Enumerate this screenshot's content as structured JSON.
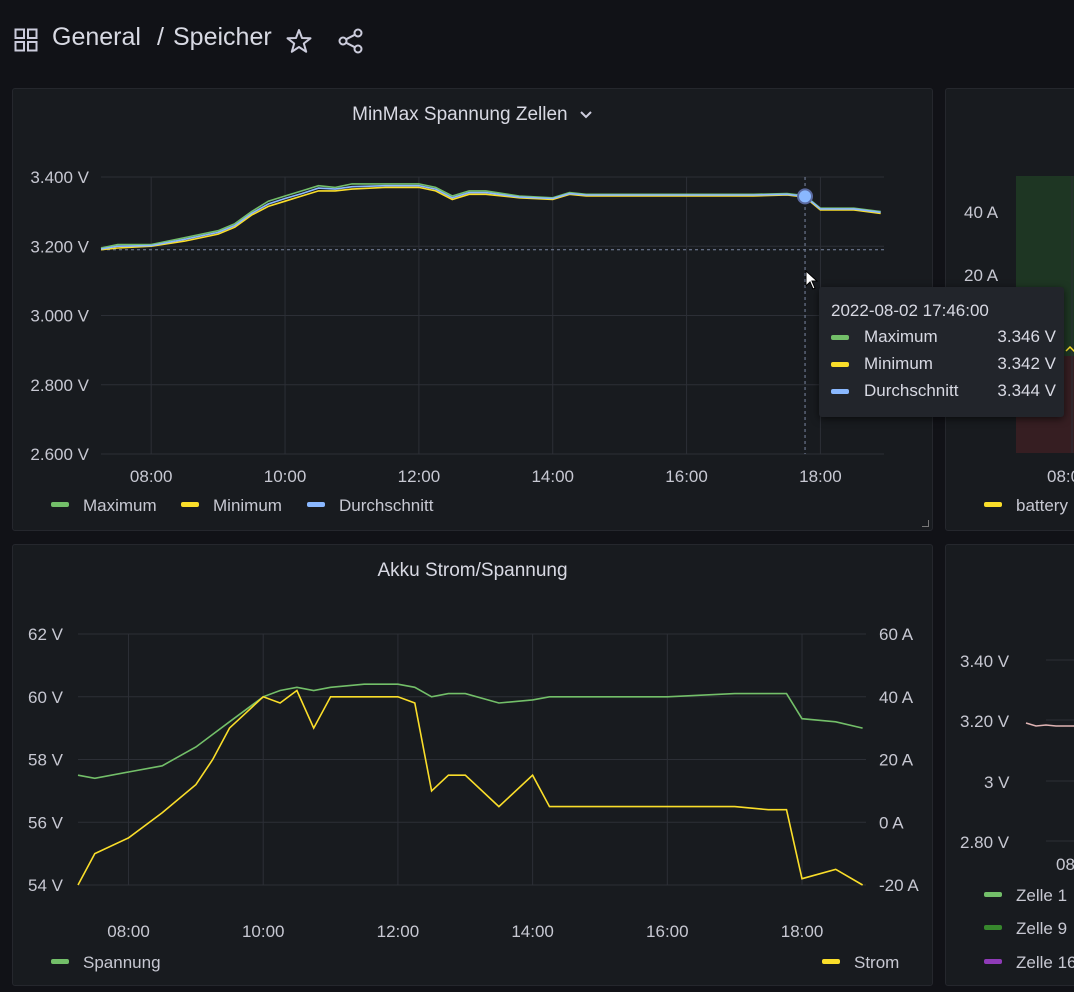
{
  "breadcrumb": {
    "folder": "General",
    "separator": "/",
    "page": "Speicher"
  },
  "icons": {
    "dashboards": "grid-icon",
    "favorite": "star-icon",
    "share": "share-icon"
  },
  "colors": {
    "maximum": "#73bf69",
    "minimum": "#fade2a",
    "average": "#8ab8ff",
    "spannung": "#73bf69",
    "strom": "#fade2a",
    "zelle9": "#37872d",
    "zelle16": "#8f3bb8"
  },
  "tooltip": {
    "time": "2022-08-02 17:46:00",
    "rows": [
      {
        "name": "Maximum",
        "value": "3.346 V"
      },
      {
        "name": "Minimum",
        "value": "3.342 V"
      },
      {
        "name": "Durchschnitt",
        "value": "3.344 V"
      }
    ]
  },
  "right_top": {
    "y_ticks": [
      "40 A",
      "20 A"
    ],
    "x_tick": "08:0",
    "legend": "battery"
  },
  "right_bottom": {
    "y_ticks": [
      "3.40 V",
      "3.20 V",
      "3 V",
      "2.80 V"
    ],
    "x_tick": "08",
    "legend": [
      "Zelle 1",
      "Zelle 9",
      "Zelle 16"
    ]
  },
  "chart_data": [
    {
      "type": "line",
      "title": "MinMax Spannung Zellen",
      "y_ticks": [
        "3.400 V",
        "3.200 V",
        "3.000 V",
        "2.800 V",
        "2.600 V"
      ],
      "ylim": [
        2.6,
        3.4
      ],
      "x_ticks": [
        "08:00",
        "10:00",
        "12:00",
        "14:00",
        "16:00",
        "18:00"
      ],
      "xlim_hours": [
        7.25,
        18.95
      ],
      "x": [
        7.25,
        7.5,
        8.0,
        8.5,
        9.0,
        9.25,
        9.5,
        9.75,
        10.0,
        10.25,
        10.5,
        10.75,
        11.0,
        11.5,
        12.0,
        12.25,
        12.5,
        12.75,
        13.0,
        13.5,
        14.0,
        14.25,
        14.5,
        15.0,
        16.0,
        17.0,
        17.5,
        17.77,
        18.0,
        18.5,
        18.9
      ],
      "series": [
        {
          "name": "Maximum",
          "values": [
            3.195,
            3.205,
            3.205,
            3.225,
            3.245,
            3.265,
            3.3,
            3.33,
            3.345,
            3.36,
            3.375,
            3.37,
            3.38,
            3.38,
            3.38,
            3.37,
            3.345,
            3.36,
            3.36,
            3.345,
            3.34,
            3.355,
            3.35,
            3.35,
            3.35,
            3.35,
            3.352,
            3.346,
            3.31,
            3.31,
            3.3
          ]
        },
        {
          "name": "Minimum",
          "values": [
            3.19,
            3.195,
            3.2,
            3.215,
            3.235,
            3.255,
            3.29,
            3.315,
            3.33,
            3.345,
            3.36,
            3.36,
            3.365,
            3.37,
            3.37,
            3.36,
            3.335,
            3.35,
            3.35,
            3.34,
            3.335,
            3.35,
            3.345,
            3.345,
            3.345,
            3.345,
            3.348,
            3.342,
            3.305,
            3.305,
            3.295
          ]
        },
        {
          "name": "Durchschnitt",
          "values": [
            3.192,
            3.2,
            3.202,
            3.22,
            3.24,
            3.26,
            3.295,
            3.322,
            3.338,
            3.352,
            3.368,
            3.365,
            3.372,
            3.375,
            3.375,
            3.365,
            3.34,
            3.355,
            3.355,
            3.342,
            3.338,
            3.352,
            3.348,
            3.348,
            3.348,
            3.348,
            3.35,
            3.344,
            3.308,
            3.308,
            3.298
          ]
        }
      ]
    },
    {
      "type": "line",
      "title": "Akku Strom/Spannung",
      "y_ticks_left": [
        "62 V",
        "60 V",
        "58 V",
        "56 V",
        "54 V"
      ],
      "ylim_left": [
        54,
        62
      ],
      "y_ticks_right": [
        "60 A",
        "40 A",
        "20 A",
        "0 A",
        "-20 A"
      ],
      "ylim_right": [
        -20,
        60
      ],
      "x_ticks": [
        "08:00",
        "10:00",
        "12:00",
        "14:00",
        "16:00",
        "18:00"
      ],
      "xlim_hours": [
        7.25,
        18.95
      ],
      "x": [
        7.25,
        7.5,
        8.0,
        8.5,
        9.0,
        9.25,
        9.5,
        9.75,
        10.0,
        10.25,
        10.5,
        10.75,
        11.0,
        11.5,
        12.0,
        12.25,
        12.5,
        12.75,
        13.0,
        13.5,
        14.0,
        14.25,
        14.5,
        15.0,
        16.0,
        17.0,
        17.5,
        17.77,
        18.0,
        18.5,
        18.9
      ],
      "series": [
        {
          "name": "Spannung",
          "axis": "left",
          "values": [
            57.5,
            57.4,
            57.6,
            57.8,
            58.4,
            58.8,
            59.2,
            59.6,
            60.0,
            60.2,
            60.3,
            60.2,
            60.3,
            60.4,
            60.4,
            60.3,
            60.0,
            60.1,
            60.1,
            59.8,
            59.9,
            60.0,
            60.0,
            60.0,
            60.0,
            60.1,
            60.1,
            60.1,
            59.3,
            59.2,
            59.0
          ]
        },
        {
          "name": "Strom",
          "axis": "right",
          "values": [
            -20.0,
            -10.0,
            -5.0,
            3.0,
            12.0,
            20.0,
            30.0,
            35.0,
            40.0,
            38.0,
            42.0,
            30.0,
            40.0,
            40.0,
            40.0,
            38.0,
            10.0,
            15.0,
            15.0,
            5.0,
            15.0,
            5.0,
            5.0,
            5.0,
            5.0,
            5.0,
            4.0,
            4.0,
            -18.0,
            -15.0,
            -20.0
          ]
        }
      ]
    }
  ]
}
